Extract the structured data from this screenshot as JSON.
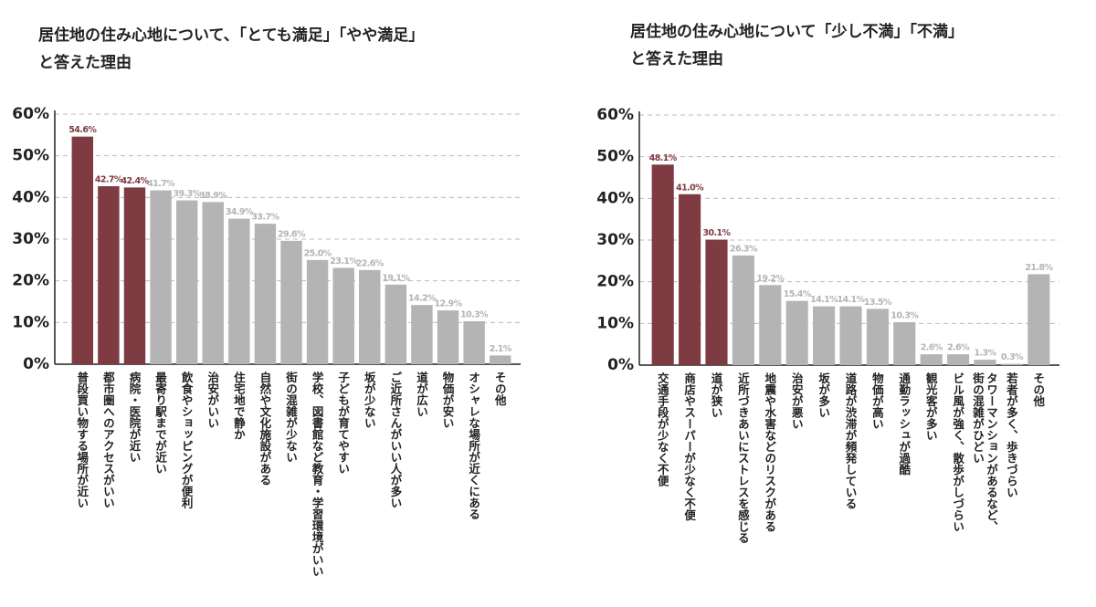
{
  "chart_data": [
    {
      "type": "bar",
      "title": [
        "居住地の住み心地について、「とても満足」「やや満足」",
        "と答えた理由"
      ],
      "categories": [
        "普段買い物する場所が近い",
        "都市圏へのアクセスがいい",
        "病院・医院が近い",
        "最寄り駅までが近い",
        "飲食やショッピングが便利",
        "治安がいい",
        "住宅地で静か",
        "自然や文化施設がある",
        "街の混雑が少ない",
        "学校、図書館など教育・学習環境がいい",
        "子どもが育てやすい",
        "坂が少ない",
        "ご近所さんがいい人が多い",
        "道が広い",
        "物価が安い",
        "オシャレな場所が近くにある",
        "その他"
      ],
      "values": [
        54.6,
        42.7,
        42.4,
        41.7,
        39.3,
        38.9,
        34.9,
        33.7,
        29.6,
        25.0,
        23.1,
        22.6,
        19.1,
        14.2,
        12.9,
        10.3,
        2.1
      ],
      "value_labels": [
        "54.6%",
        "42.7%",
        "42.4%",
        "41.7%",
        "39.3%",
        "38.9%",
        "34.9%",
        "33.7%",
        "29.6%",
        "25.0%",
        "23.1%",
        "22.6%",
        "19.1%",
        "14.2%",
        "12.9%",
        "10.3%",
        "2.1%"
      ],
      "colors": [
        "#7e3b42",
        "#7e3b42",
        "#7e3b42",
        "#b4b4b4",
        "#b4b4b4",
        "#b4b4b4",
        "#b4b4b4",
        "#b4b4b4",
        "#b4b4b4",
        "#b4b4b4",
        "#b4b4b4",
        "#b4b4b4",
        "#b4b4b4",
        "#b4b4b4",
        "#b4b4b4",
        "#b4b4b4",
        "#b4b4b4"
      ],
      "ylim": [
        0,
        60
      ],
      "yticks": [
        {
          "value": 0,
          "label": "0%"
        },
        {
          "value": 10,
          "label": "10%"
        },
        {
          "value": 20,
          "label": "20%"
        },
        {
          "value": 30,
          "label": "30%"
        },
        {
          "value": 40,
          "label": "40%"
        },
        {
          "value": 50,
          "label": "50%"
        },
        {
          "value": 60,
          "label": "60%"
        }
      ],
      "grid": true
    },
    {
      "type": "bar",
      "title": [
        "居住地の住み心地について「少し不満」「不満」",
        "と答えた理由"
      ],
      "categories": [
        "交通手段が少なく不便",
        "商店やスーパーが少なく不便",
        "道が狭い",
        "近所づきあいにストレスを感じる",
        "地震や水害などのリスクがある",
        "治安が悪い",
        "坂が多い",
        "道路が渋滞が頻発している",
        "物価が高い",
        "通勤ラッシュが過酷",
        "観光客が多い",
        "ビル風が強く、散歩がしづらい",
        [
          "タワーマンションがあるなど、",
          "街の混雑がひどい"
        ],
        "若者が多く、歩きづらい",
        "その他"
      ],
      "values": [
        48.1,
        41.0,
        30.1,
        26.3,
        19.2,
        15.4,
        14.1,
        14.1,
        13.5,
        10.3,
        2.6,
        2.6,
        1.3,
        0.3,
        21.8
      ],
      "value_labels": [
        "48.1%",
        "41.0%",
        "30.1%",
        "26.3%",
        "19.2%",
        "15.4%",
        "14.1%",
        "14.1%",
        "13.5%",
        "10.3%",
        "2.6%",
        "2.6%",
        "1.3%",
        "0.3%",
        "21.8%"
      ],
      "colors": [
        "#7e3b42",
        "#7e3b42",
        "#7e3b42",
        "#b4b4b4",
        "#b4b4b4",
        "#b4b4b4",
        "#b4b4b4",
        "#b4b4b4",
        "#b4b4b4",
        "#b4b4b4",
        "#b4b4b4",
        "#b4b4b4",
        "#b4b4b4",
        "#b4b4b4",
        "#b4b4b4"
      ],
      "ylim": [
        0,
        60
      ],
      "yticks": [
        {
          "value": 0,
          "label": "0%"
        },
        {
          "value": 10,
          "label": "10%"
        },
        {
          "value": 20,
          "label": "20%"
        },
        {
          "value": 30,
          "label": "30%"
        },
        {
          "value": 40,
          "label": "40%"
        },
        {
          "value": 50,
          "label": "50%"
        },
        {
          "value": 60,
          "label": "60%"
        }
      ],
      "grid": true
    }
  ]
}
